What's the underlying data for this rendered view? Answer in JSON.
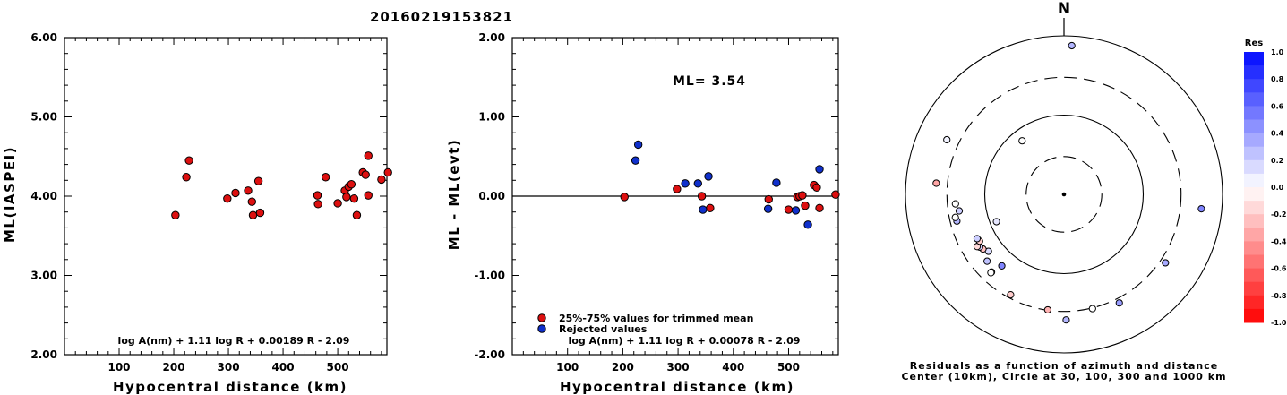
{
  "title": "20160219153821",
  "colors": {
    "accepted": "#dd1010",
    "rejected": "#1030cc",
    "axis": "#000000"
  },
  "chart_data": [
    {
      "id": "ml-vs-distance",
      "type": "scatter",
      "xlabel": "Hypocentral distance (km)",
      "ylabel": "ML(IASPEI)",
      "xlim": [
        0,
        590
      ],
      "ylim": [
        2.0,
        6.0
      ],
      "xticks": [
        "100",
        "200",
        "300",
        "400",
        "500"
      ],
      "yticks": [
        "2.00",
        "3.00",
        "4.00",
        "5.00",
        "6.00"
      ],
      "formula": "log A(nm) + 1.11 log R + 0.00189 R - 2.09",
      "series": [
        {
          "color": "#dd1010",
          "points": [
            [
              203,
              3.76
            ],
            [
              223,
              4.24
            ],
            [
              228,
              4.45
            ],
            [
              298,
              3.97
            ],
            [
              313,
              4.04
            ],
            [
              336,
              4.07
            ],
            [
              343,
              3.93
            ],
            [
              345,
              3.76
            ],
            [
              355,
              4.19
            ],
            [
              358,
              3.79
            ],
            [
              463,
              4.01
            ],
            [
              464,
              3.9
            ],
            [
              478,
              4.24
            ],
            [
              500,
              3.91
            ],
            [
              513,
              4.07
            ],
            [
              516,
              3.99
            ],
            [
              520,
              4.12
            ],
            [
              525,
              4.15
            ],
            [
              530,
              3.97
            ],
            [
              535,
              3.76
            ],
            [
              546,
              4.3
            ],
            [
              551,
              4.27
            ],
            [
              556,
              4.01
            ],
            [
              556,
              4.51
            ],
            [
              580,
              4.21
            ],
            [
              592,
              4.3
            ]
          ]
        }
      ]
    },
    {
      "id": "residual-vs-distance",
      "type": "scatter",
      "xlabel": "Hypocentral distance (km)",
      "ylabel": "ML - ML(evt)",
      "xlim": [
        0,
        590
      ],
      "ylim": [
        -2.0,
        2.0
      ],
      "xticks": [
        "100",
        "200",
        "300",
        "400",
        "500"
      ],
      "yticks": [
        "-2.00",
        "-1.00",
        "0.00",
        "1.00",
        "2.00"
      ],
      "annotation": "ML= 3.54",
      "formula": "log A(nm) + 1.11 log R + 0.00078 R - 2.09",
      "legend": [
        {
          "label": "25%-75% values for trimmed mean",
          "color": "#dd1010"
        },
        {
          "label": "Rejected values",
          "color": "#1030cc"
        }
      ],
      "series": [
        {
          "name": "25%-75% values for trimmed mean",
          "color": "#dd1010",
          "points": [
            [
              203,
              -0.01
            ],
            [
              298,
              0.09
            ],
            [
              343,
              0.0
            ],
            [
              358,
              -0.15
            ],
            [
              464,
              -0.04
            ],
            [
              500,
              -0.17
            ],
            [
              516,
              -0.01
            ],
            [
              520,
              0.0
            ],
            [
              525,
              0.01
            ],
            [
              530,
              -0.12
            ],
            [
              546,
              0.14
            ],
            [
              551,
              0.11
            ],
            [
              556,
              -0.15
            ],
            [
              585,
              0.02
            ]
          ]
        },
        {
          "name": "Rejected values",
          "color": "#1030cc",
          "points": [
            [
              223,
              0.45
            ],
            [
              228,
              0.65
            ],
            [
              313,
              0.16
            ],
            [
              336,
              0.16
            ],
            [
              345,
              -0.17
            ],
            [
              355,
              0.25
            ],
            [
              463,
              -0.16
            ],
            [
              478,
              0.17
            ],
            [
              513,
              -0.18
            ],
            [
              535,
              -0.36
            ],
            [
              556,
              0.34
            ]
          ]
        }
      ]
    },
    {
      "id": "azimuth-distance-residuals",
      "type": "scatter",
      "north_label": "N",
      "caption_line1": "Residuals as a function of azimuth and distance",
      "caption_line2": "Center (10km), Circle at 30, 100, 300 and 1000 km",
      "rings": [
        {
          "km": 30,
          "style": "dashed"
        },
        {
          "km": 100,
          "style": "solid"
        },
        {
          "km": 300,
          "style": "dashed"
        },
        {
          "km": 1000,
          "style": "solid"
        }
      ],
      "colorbar": {
        "title": "Res",
        "ticks": [
          "1.0",
          "0.8",
          "0.6",
          "0.4",
          "0.2",
          "0.0",
          "-0.2",
          "-0.4",
          "-0.6",
          "-0.8",
          "-1.0"
        ]
      },
      "points": [
        {
          "azimuth": 3,
          "distance_km": 756,
          "res": 0.3
        },
        {
          "azimuth": 96,
          "distance_km": 553,
          "res": 0.5
        },
        {
          "azimuth": 124,
          "distance_km": 350,
          "res": 0.35
        },
        {
          "azimuth": 153,
          "distance_km": 344,
          "res": 0.4
        },
        {
          "azimuth": 166,
          "distance_km": 306,
          "res": 0.0
        },
        {
          "azimuth": 179,
          "distance_km": 384,
          "res": 0.3
        },
        {
          "azimuth": 188,
          "distance_km": 296,
          "res": -0.3
        },
        {
          "azimuth": 208,
          "distance_km": 272,
          "res": -0.2
        },
        {
          "azimuth": 221,
          "distance_km": 157,
          "res": 0.5
        },
        {
          "azimuth": 223,
          "distance_km": 219,
          "res": 0.0
        },
        {
          "azimuth": 223,
          "distance_km": 225,
          "res": 0.0
        },
        {
          "azimuth": 229,
          "distance_km": 193,
          "res": 0.25
        },
        {
          "azimuth": 233,
          "distance_km": 156,
          "res": 0.15
        },
        {
          "azimuth": 236,
          "distance_km": 171,
          "res": -0.25
        },
        {
          "azimuth": 238,
          "distance_km": 180,
          "res": 0.2
        },
        {
          "azimuth": 239,
          "distance_km": 190,
          "res": -0.15
        },
        {
          "azimuth": 241,
          "distance_km": 165,
          "res": -0.2
        },
        {
          "azimuth": 243,
          "distance_km": 170,
          "res": 0.2
        },
        {
          "azimuth": 248,
          "distance_km": 83,
          "res": 0.1
        },
        {
          "azimuth": 256,
          "distance_km": 247,
          "res": 0.3
        },
        {
          "azimuth": 258,
          "distance_km": 252,
          "res": 0.0
        },
        {
          "azimuth": 261,
          "distance_km": 218,
          "res": 0.2
        },
        {
          "azimuth": 265,
          "distance_km": 237,
          "res": 0.0
        },
        {
          "azimuth": 275,
          "distance_km": 415,
          "res": -0.35
        },
        {
          "azimuth": 295,
          "distance_km": 427,
          "res": 0.05
        },
        {
          "azimuth": 322,
          "distance_km": 72,
          "res": 0.0
        }
      ]
    }
  ]
}
